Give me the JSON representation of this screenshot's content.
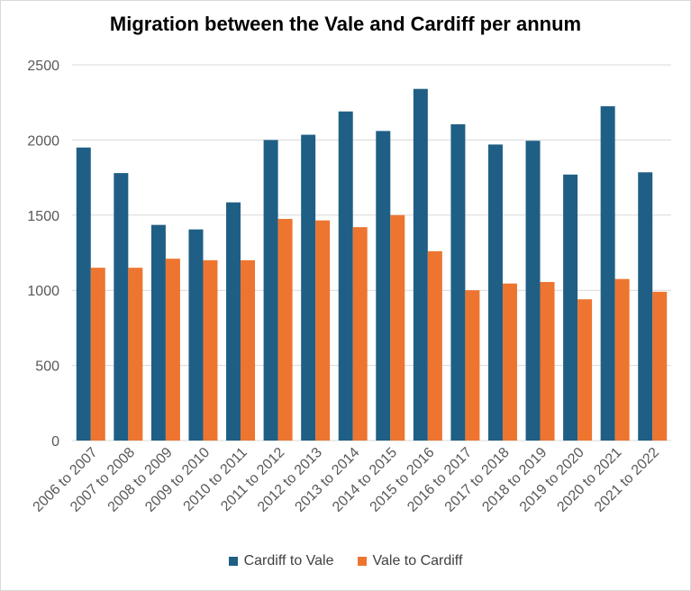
{
  "chart_data": {
    "type": "bar",
    "title": "Migration between the Vale and Cardiff per annum",
    "xlabel": "",
    "ylabel": "",
    "ylim": [
      0,
      2500
    ],
    "yticks": [
      0,
      500,
      1000,
      1500,
      2000,
      2500
    ],
    "grid": true,
    "legend_position": "bottom",
    "categories": [
      "2006 to 2007",
      "2007 to 2008",
      "2008 to 2009",
      "2009 to 2010",
      "2010 to 2011",
      "2011 to 2012",
      "2012 to 2013",
      "2013 to 2014",
      "2014 to 2015",
      "2015 to 2016",
      "2016 to 2017",
      "2017 to 2018",
      "2018 to 2019",
      "2019 to 2020",
      "2020 to 2021",
      "2021 to 2022"
    ],
    "series": [
      {
        "name": "Cardiff to Vale",
        "color": "#1f5f85",
        "values": [
          1950,
          1780,
          1435,
          1405,
          1585,
          2000,
          2035,
          2190,
          2060,
          2340,
          2105,
          1970,
          1995,
          1770,
          2225,
          1785
        ]
      },
      {
        "name": "Vale to Cardiff",
        "color": "#ed7530",
        "values": [
          1150,
          1150,
          1210,
          1200,
          1200,
          1475,
          1465,
          1420,
          1500,
          1260,
          1000,
          1045,
          1055,
          940,
          1075,
          990
        ]
      }
    ]
  }
}
